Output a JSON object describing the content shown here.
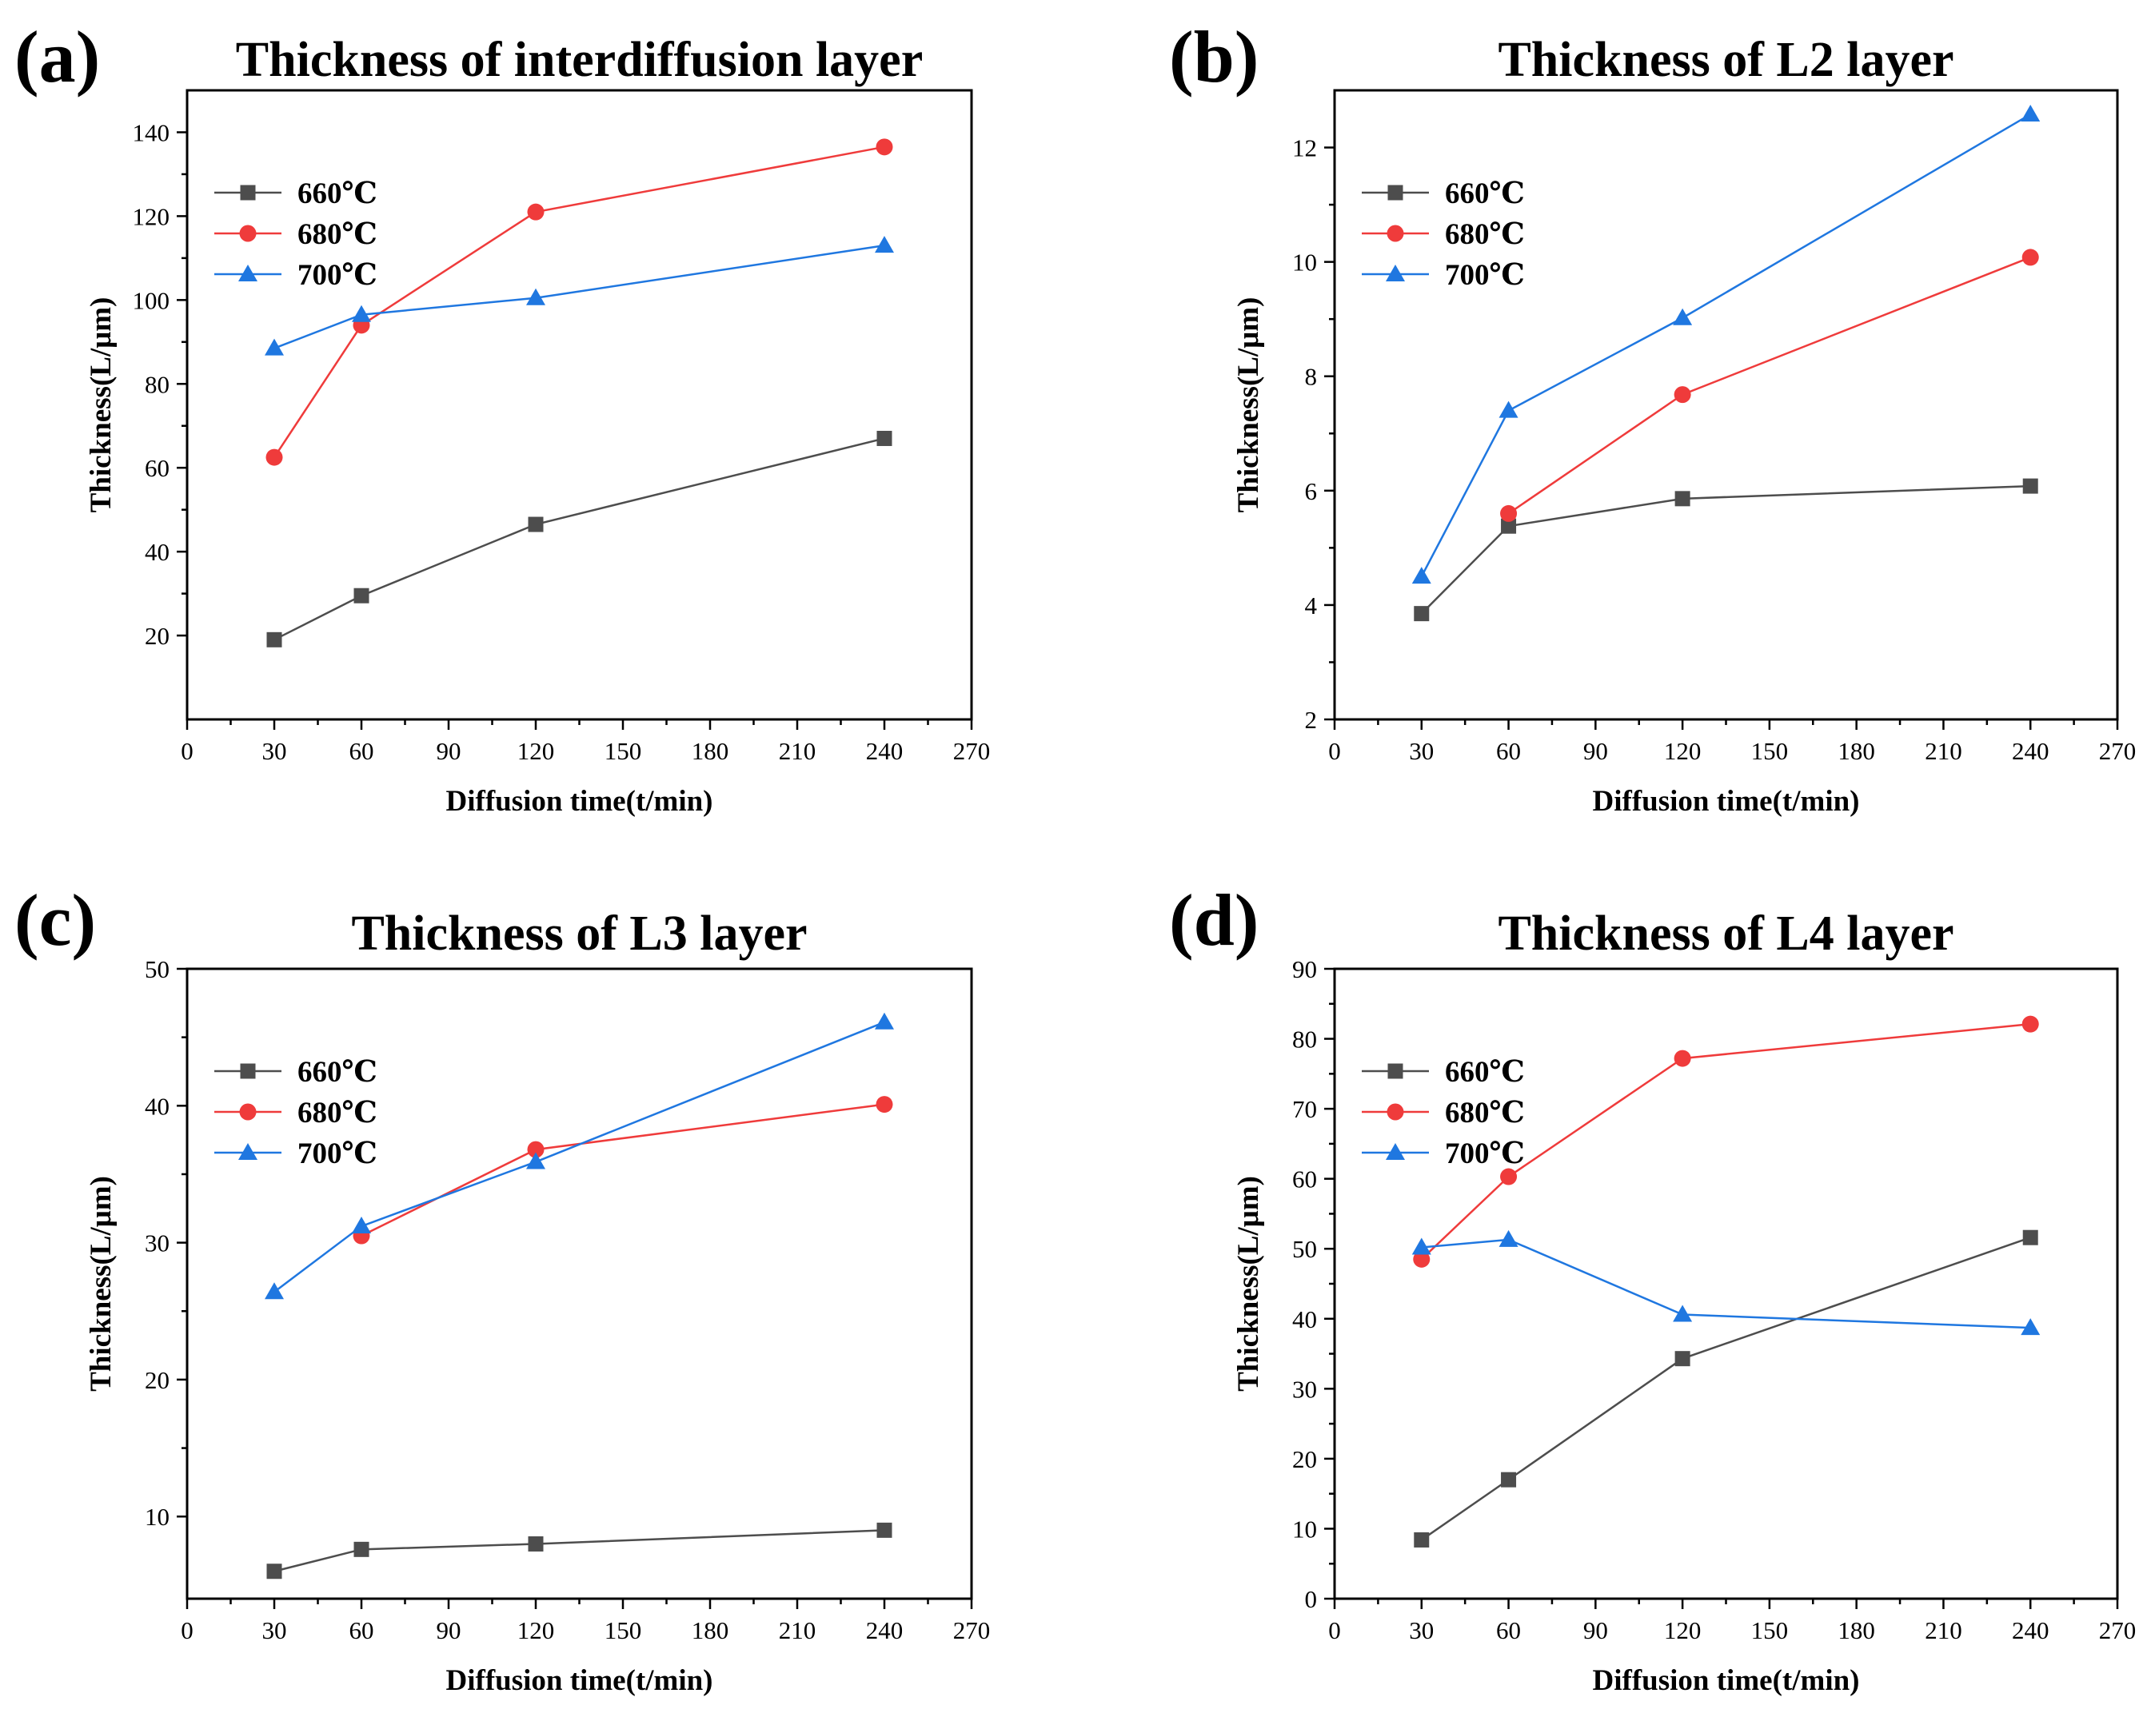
{
  "chart_data": [
    {
      "type": "line",
      "panel_label": "(a)",
      "title": "Thickness of interdiffusion layer",
      "xlabel": "Diffusion time(t/min)",
      "ylabel": "Thickness(L/μm)",
      "xlim": [
        0,
        270
      ],
      "ylim": [
        0,
        150
      ],
      "xticks": [
        0,
        30,
        60,
        90,
        120,
        150,
        180,
        210,
        240,
        270
      ],
      "yticks": [
        20,
        40,
        60,
        80,
        100,
        120,
        140
      ],
      "legend_position": "upper-left",
      "grid": false,
      "x": [
        30,
        60,
        120,
        240
      ],
      "series": [
        {
          "name": "660℃",
          "marker": "square",
          "color": "#4d4d4d",
          "values": [
            19,
            29.5,
            46.5,
            67
          ]
        },
        {
          "name": "680℃",
          "marker": "circle",
          "color": "#ef3b3b",
          "values": [
            62.5,
            94,
            121,
            136.5
          ]
        },
        {
          "name": "700℃",
          "marker": "triangle",
          "color": "#1f77e0",
          "values": [
            88.5,
            96.5,
            100.5,
            113
          ]
        }
      ]
    },
    {
      "type": "line",
      "panel_label": "(b)",
      "title": "Thickness of L2 layer",
      "xlabel": "Diffusion time(t/min)",
      "ylabel": "Thickness(L/μm)",
      "xlim": [
        0,
        270
      ],
      "ylim": [
        2,
        13
      ],
      "xticks": [
        0,
        30,
        60,
        90,
        120,
        150,
        180,
        210,
        240,
        270
      ],
      "yticks": [
        2,
        4,
        6,
        8,
        10,
        12
      ],
      "legend_position": "upper-left",
      "grid": false,
      "x": [
        30,
        60,
        120,
        240
      ],
      "series": [
        {
          "name": "660℃",
          "marker": "square",
          "color": "#4d4d4d",
          "values": [
            3.85,
            5.38,
            5.86,
            6.08
          ]
        },
        {
          "name": "680℃",
          "marker": "circle",
          "color": "#ef3b3b",
          "values": [
            null,
            5.6,
            7.68,
            10.08
          ]
        },
        {
          "name": "700℃",
          "marker": "triangle",
          "color": "#1f77e0",
          "values": [
            4.5,
            7.4,
            9.02,
            12.58
          ]
        }
      ]
    },
    {
      "type": "line",
      "panel_label": "(c)",
      "title": "Thickness of L3 layer",
      "xlabel": "Diffusion time(t/min)",
      "ylabel": "Thickness(L/μm)",
      "xlim": [
        0,
        270
      ],
      "ylim": [
        4,
        50
      ],
      "xticks": [
        0,
        30,
        60,
        90,
        120,
        150,
        180,
        210,
        240,
        270
      ],
      "yticks": [
        10,
        20,
        30,
        40,
        50
      ],
      "legend_position": "upper-left",
      "grid": false,
      "x": [
        30,
        60,
        120,
        240
      ],
      "series": [
        {
          "name": "660℃",
          "marker": "square",
          "color": "#4d4d4d",
          "values": [
            6,
            7.6,
            8,
            9
          ]
        },
        {
          "name": "680℃",
          "marker": "circle",
          "color": "#ef3b3b",
          "values": [
            null,
            30.5,
            36.8,
            40.1
          ]
        },
        {
          "name": "700℃",
          "marker": "triangle",
          "color": "#1f77e0",
          "values": [
            26.4,
            31.2,
            35.9,
            46.1
          ]
        }
      ]
    },
    {
      "type": "line",
      "panel_label": "(d)",
      "title": "Thickness of L4 layer",
      "xlabel": "Diffusion time(t/min)",
      "ylabel": "Thickness(L/μm)",
      "xlim": [
        0,
        270
      ],
      "ylim": [
        0,
        90
      ],
      "xticks": [
        0,
        30,
        60,
        90,
        120,
        150,
        180,
        210,
        240,
        270
      ],
      "yticks": [
        0,
        10,
        20,
        30,
        40,
        50,
        60,
        70,
        80,
        90
      ],
      "legend_position": "upper-left",
      "grid": false,
      "x": [
        30,
        60,
        120,
        240
      ],
      "series": [
        {
          "name": "660℃",
          "marker": "square",
          "color": "#4d4d4d",
          "values": [
            8.4,
            17,
            34.3,
            51.6
          ]
        },
        {
          "name": "680℃",
          "marker": "circle",
          "color": "#ef3b3b",
          "values": [
            48.5,
            60.3,
            77.2,
            82.1
          ]
        },
        {
          "name": "700℃",
          "marker": "triangle",
          "color": "#1f77e0",
          "values": [
            50.2,
            51.3,
            40.6,
            38.7
          ]
        }
      ]
    }
  ]
}
